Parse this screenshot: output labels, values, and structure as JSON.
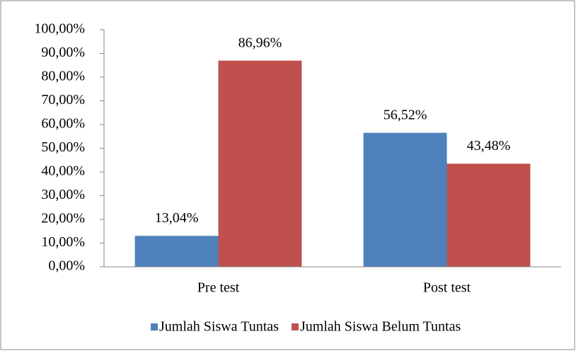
{
  "chart_data": {
    "type": "bar",
    "categories": [
      "Pre test",
      "Post test"
    ],
    "series": [
      {
        "name": "Jumlah Siswa Tuntas",
        "color": "#4f81bd",
        "values": [
          13.04,
          56.52
        ],
        "value_labels": [
          "13,04%",
          "56,52%"
        ]
      },
      {
        "name": "Jumlah Siswa Belum Tuntas",
        "color": "#c0504d",
        "values": [
          86.96,
          43.48
        ],
        "value_labels": [
          "86,96%",
          "43,48%"
        ]
      }
    ],
    "ylim": [
      0,
      100
    ],
    "yticks": [
      {
        "value": 0,
        "label": "0,00%"
      },
      {
        "value": 10,
        "label": "10,00%"
      },
      {
        "value": 20,
        "label": "20,00%"
      },
      {
        "value": 30,
        "label": "30,00%"
      },
      {
        "value": 40,
        "label": "40,00%"
      },
      {
        "value": 50,
        "label": "50,00%"
      },
      {
        "value": 60,
        "label": "60,00%"
      },
      {
        "value": 70,
        "label": "70,00%"
      },
      {
        "value": 80,
        "label": "80,00%"
      },
      {
        "value": 90,
        "label": "90,00%"
      },
      {
        "value": 100,
        "label": "100,00%"
      }
    ],
    "grid": false,
    "legend": "bottom"
  }
}
